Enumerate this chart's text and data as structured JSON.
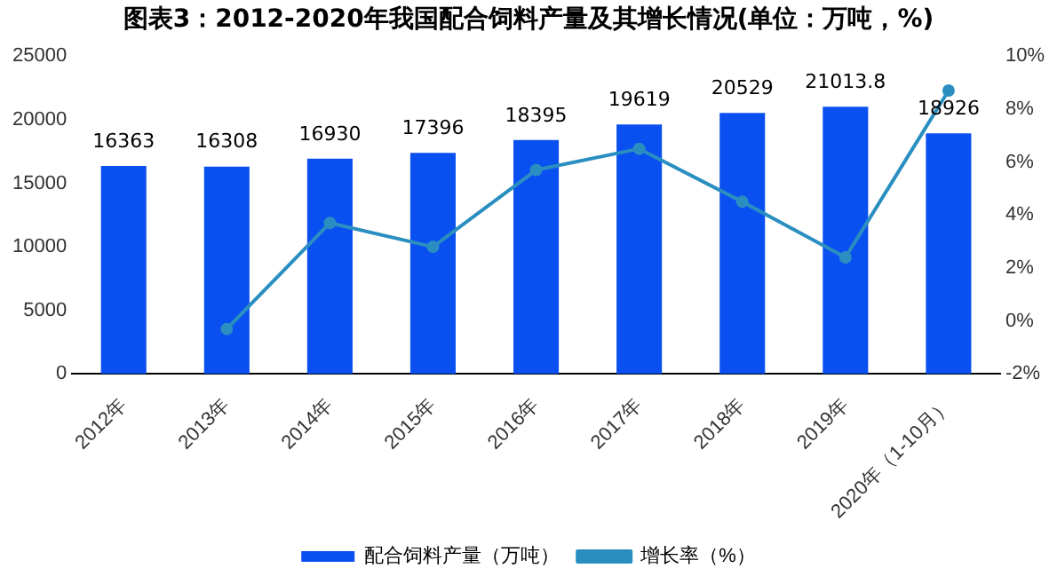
{
  "chart_data": {
    "type": "bar",
    "title": "图表3：2012-2020年我国配合饲料产量及其增长情况(单位：万吨，%)",
    "categories": [
      "2012年",
      "2013年",
      "2014年",
      "2015年",
      "2016年",
      "2017年",
      "2018年",
      "2019年",
      "2020年（1-10月）"
    ],
    "series": [
      {
        "name": "配合饲料产量（万吨）",
        "color": "#0a4ff0",
        "values": [
          16363,
          16308,
          16930,
          17396,
          18395,
          19619,
          20529,
          21013.8,
          18926
        ],
        "value_labels": [
          "16363",
          "16308",
          "16930",
          "17396",
          "18395",
          "19619",
          "20529",
          "21013.8",
          "18926"
        ]
      },
      {
        "name": "增长率（%）",
        "type": "line",
        "axis": "y2",
        "color": "#2a8fc0",
        "values": [
          null,
          -0.3,
          3.7,
          2.8,
          5.7,
          6.5,
          4.5,
          2.4,
          8.7
        ]
      }
    ],
    "ylim": [
      0,
      25000
    ],
    "yticks": [
      0,
      5000,
      10000,
      15000,
      20000,
      25000
    ],
    "y2lim": [
      -2,
      10
    ],
    "y2ticks": [
      {
        "value": -2,
        "label": "-2%"
      },
      {
        "value": 0,
        "label": "0%"
      },
      {
        "value": 2,
        "label": "2%"
      },
      {
        "value": 4,
        "label": "4%"
      },
      {
        "value": 6,
        "label": "6%"
      },
      {
        "value": 8,
        "label": "8%"
      },
      {
        "value": 10,
        "label": "10%"
      }
    ],
    "grid": false,
    "legend": "bottom",
    "marker": "circle"
  }
}
